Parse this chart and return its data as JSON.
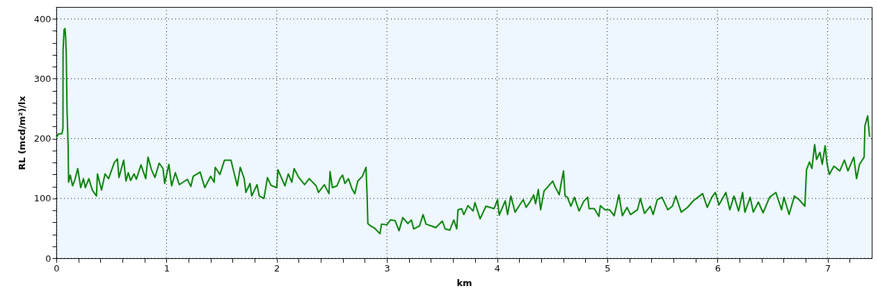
{
  "chart_data": {
    "type": "line",
    "xlabel": "km",
    "ylabel": "RL (mcd/m²)/lx",
    "xlim": [
      0,
      7.4
    ],
    "ylim": [
      0,
      420
    ],
    "xticks": [
      0,
      {
        "value": 0.2,
        "label": null
      },
      {
        "value": 0.4,
        "label": null
      },
      {
        "value": 0.6,
        "label": null
      },
      {
        "value": 0.8,
        "label": null
      },
      1,
      {
        "value": 1.2,
        "label": null
      },
      {
        "value": 1.4,
        "label": null
      },
      {
        "value": 1.6,
        "label": null
      },
      {
        "value": 1.8,
        "label": null
      },
      2,
      {
        "value": 2.2,
        "label": null
      },
      {
        "value": 2.4,
        "label": null
      },
      {
        "value": 2.6,
        "label": null
      },
      {
        "value": 2.8,
        "label": null
      },
      3,
      {
        "value": 3.2,
        "label": null
      },
      {
        "value": 3.4,
        "label": null
      },
      {
        "value": 3.6,
        "label": null
      },
      {
        "value": 3.8,
        "label": null
      },
      4,
      {
        "value": 4.2,
        "label": null
      },
      {
        "value": 4.4,
        "label": null
      },
      {
        "value": 4.6,
        "label": null
      },
      {
        "value": 4.8,
        "label": null
      },
      5,
      {
        "value": 5.2,
        "label": null
      },
      {
        "value": 5.4,
        "label": null
      },
      {
        "value": 5.6,
        "label": null
      },
      {
        "value": 5.8,
        "label": null
      },
      6,
      {
        "value": 6.2,
        "label": null
      },
      {
        "value": 6.4,
        "label": null
      },
      {
        "value": 6.6,
        "label": null
      },
      {
        "value": 6.8,
        "label": null
      },
      7,
      {
        "value": 7.2,
        "label": null
      }
    ],
    "yticks": [
      0,
      {
        "value": 20,
        "label": null
      },
      {
        "value": 40,
        "label": null
      },
      {
        "value": 60,
        "label": null
      },
      {
        "value": 80,
        "label": null
      },
      100,
      {
        "value": 120,
        "label": null
      },
      {
        "value": 140,
        "label": null
      },
      {
        "value": 160,
        "label": null
      },
      {
        "value": 180,
        "label": null
      },
      200,
      {
        "value": 220,
        "label": null
      },
      {
        "value": 240,
        "label": null
      },
      {
        "value": 260,
        "label": null
      },
      {
        "value": 280,
        "label": null
      },
      300,
      {
        "value": 320,
        "label": null
      },
      {
        "value": 340,
        "label": null
      },
      {
        "value": 360,
        "label": null
      },
      {
        "value": 380,
        "label": null
      },
      400
    ],
    "grid": true,
    "marker": "none",
    "line_style": "solid",
    "series": [
      {
        "color": "#008000",
        "x": [
          0,
          0.02,
          0.05,
          0.06,
          0.061,
          0.07,
          0.078,
          0.085,
          0.09,
          0.097,
          0.107,
          0.111,
          0.126,
          0.147,
          0.168,
          0.194,
          0.221,
          0.246,
          0.263,
          0.295,
          0.326,
          0.364,
          0.373,
          0.41,
          0.442,
          0.474,
          0.526,
          0.554,
          0.568,
          0.611,
          0.632,
          0.653,
          0.674,
          0.705,
          0.726,
          0.768,
          0.811,
          0.832,
          0.863,
          0.895,
          0.933,
          0.968,
          0.983,
          1.021,
          1.046,
          1.08,
          1.116,
          1.189,
          1.221,
          1.242,
          1.305,
          1.347,
          1.4,
          1.432,
          1.442,
          1.484,
          1.526,
          1.547,
          1.585,
          1.611,
          1.642,
          1.669,
          1.705,
          1.72,
          1.758,
          1.773,
          1.821,
          1.842,
          1.884,
          1.916,
          1.947,
          2.0,
          2.011,
          2.074,
          2.105,
          2.137,
          2.158,
          2.2,
          2.253,
          2.295,
          2.358,
          2.379,
          2.432,
          2.474,
          2.484,
          2.505,
          2.547,
          2.574,
          2.598,
          2.619,
          2.651,
          2.683,
          2.708,
          2.736,
          2.778,
          2.81,
          2.82,
          2.827,
          2.852,
          2.884,
          2.937,
          2.951,
          3.0,
          3.032,
          3.074,
          3.11,
          3.144,
          3.19,
          3.222,
          3.243,
          3.296,
          3.328,
          3.355,
          3.404,
          3.443,
          3.503,
          3.529,
          3.571,
          3.607,
          3.634,
          3.645,
          3.677,
          3.698,
          3.736,
          3.782,
          3.799,
          3.846,
          3.899,
          3.973,
          4.004,
          4.019,
          4.074,
          4.095,
          4.125,
          4.163,
          4.205,
          4.237,
          4.264,
          4.311,
          4.332,
          4.349,
          4.374,
          4.395,
          4.427,
          4.459,
          4.505,
          4.522,
          4.564,
          4.581,
          4.603,
          4.617,
          4.638,
          4.67,
          4.702,
          4.744,
          4.786,
          4.822,
          4.835,
          4.882,
          4.924,
          4.937,
          4.979,
          5.021,
          5.063,
          5.105,
          5.137,
          5.179,
          5.211,
          5.274,
          5.3,
          5.338,
          5.39,
          5.416,
          5.454,
          5.496,
          5.549,
          5.591,
          5.622,
          5.671,
          5.728,
          5.781,
          5.823,
          5.865,
          5.907,
          5.949,
          5.981,
          6.013,
          6.076,
          6.112,
          6.15,
          6.192,
          6.228,
          6.249,
          6.297,
          6.325,
          6.371,
          6.414,
          6.473,
          6.53,
          6.582,
          6.603,
          6.65,
          6.698,
          6.74,
          6.793,
          6.808,
          6.835,
          6.857,
          6.882,
          6.899,
          6.93,
          6.951,
          6.977,
          6.994,
          7.015,
          7.057,
          7.11,
          7.152,
          7.184,
          7.237,
          7.262,
          7.289,
          7.331,
          7.338,
          7.363,
          7.38
        ],
        "values": [
          202,
          208,
          208,
          217,
          347,
          382,
          384,
          367,
          340,
          248,
          187,
          127,
          139,
          121,
          131,
          150,
          118,
          133,
          118,
          133,
          114,
          104,
          141,
          114,
          141,
          133,
          160,
          166,
          135,
          164,
          129,
          143,
          130,
          141,
          132,
          156,
          133,
          169,
          148,
          135,
          159,
          150,
          125,
          157,
          121,
          143,
          123,
          132,
          120,
          137,
          144,
          118,
          137,
          127,
          152,
          140,
          164,
          164,
          164,
          144,
          121,
          152,
          133,
          110,
          125,
          104,
          123,
          104,
          100,
          135,
          122,
          118,
          148,
          121,
          141,
          127,
          150,
          135,
          123,
          133,
          121,
          110,
          123,
          108,
          145,
          118,
          121,
          133,
          139,
          125,
          133,
          116,
          108,
          129,
          137,
          152,
          106,
          58,
          54,
          51,
          41,
          57,
          56,
          64,
          63,
          46,
          68,
          58,
          64,
          49,
          54,
          73,
          57,
          54,
          51,
          62,
          49,
          47,
          64,
          49,
          81,
          83,
          73,
          88,
          79,
          93,
          66,
          87,
          83,
          98,
          72,
          96,
          73,
          104,
          77,
          89,
          98,
          85,
          98,
          106,
          91,
          115,
          81,
          113,
          119,
          129,
          121,
          106,
          125,
          146,
          104,
          102,
          87,
          102,
          79,
          95,
          102,
          83,
          83,
          70,
          88,
          81,
          81,
          71,
          106,
          71,
          85,
          73,
          81,
          100,
          75,
          87,
          73,
          98,
          102,
          81,
          87,
          104,
          77,
          85,
          96,
          102,
          108,
          85,
          102,
          110,
          89,
          110,
          81,
          104,
          79,
          110,
          77,
          102,
          77,
          94,
          76,
          102,
          110,
          81,
          102,
          73,
          104,
          98,
          87,
          148,
          161,
          150,
          190,
          165,
          177,
          157,
          188,
          159,
          140,
          154,
          146,
          164,
          146,
          169,
          133,
          157,
          169,
          221,
          238,
          203
        ]
      }
    ]
  }
}
